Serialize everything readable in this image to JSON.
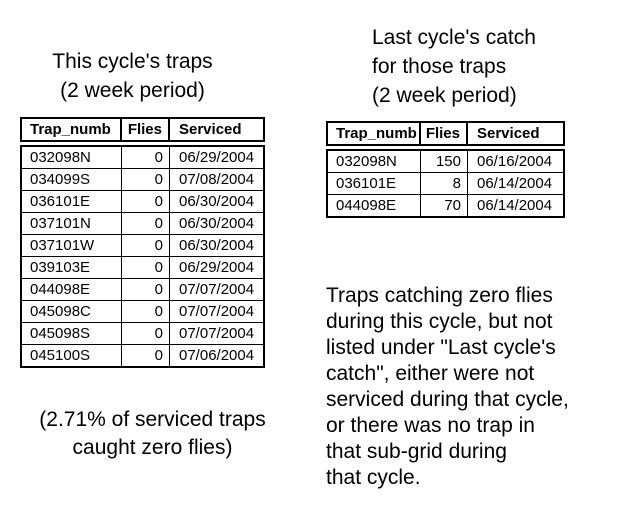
{
  "page": {
    "background": "#ffffff",
    "text_color": "#000000"
  },
  "left_panel": {
    "title_lines": [
      "This cycle's traps",
      "(2 week period)"
    ],
    "table": {
      "columns": [
        "Trap_numb",
        "Flies",
        "Serviced"
      ],
      "rows": [
        [
          "032098N",
          "0",
          "06/29/2004"
        ],
        [
          "034099S",
          "0",
          "07/08/2004"
        ],
        [
          "036101E",
          "0",
          "06/30/2004"
        ],
        [
          "037101N",
          "0",
          "06/30/2004"
        ],
        [
          "037101W",
          "0",
          "06/30/2004"
        ],
        [
          "039103E",
          "0",
          "06/29/2004"
        ],
        [
          "044098E",
          "0",
          "07/07/2004"
        ],
        [
          "045098C",
          "0",
          "07/07/2004"
        ],
        [
          "045098S",
          "0",
          "07/07/2004"
        ],
        [
          "045100S",
          "0",
          "07/06/2004"
        ]
      ]
    },
    "caption_lines": [
      "(2.71% of serviced traps",
      "caught zero flies)"
    ]
  },
  "right_panel": {
    "title_lines": [
      "Last cycle's catch",
      "for those traps",
      "(2 week period)"
    ],
    "table": {
      "columns": [
        "Trap_numb",
        "Flies",
        "Serviced"
      ],
      "rows": [
        [
          "032098N",
          "150",
          "06/16/2004"
        ],
        [
          "036101E",
          "8",
          "06/14/2004"
        ],
        [
          "044098E",
          "70",
          "06/14/2004"
        ]
      ]
    },
    "note_lines": [
      "Traps catching zero flies",
      "during this cycle, but not",
      "listed under \"Last cycle's",
      "catch\", either were not",
      "serviced during that cycle,",
      "or there was no trap in",
      "that sub-grid during",
      "that cycle."
    ]
  }
}
